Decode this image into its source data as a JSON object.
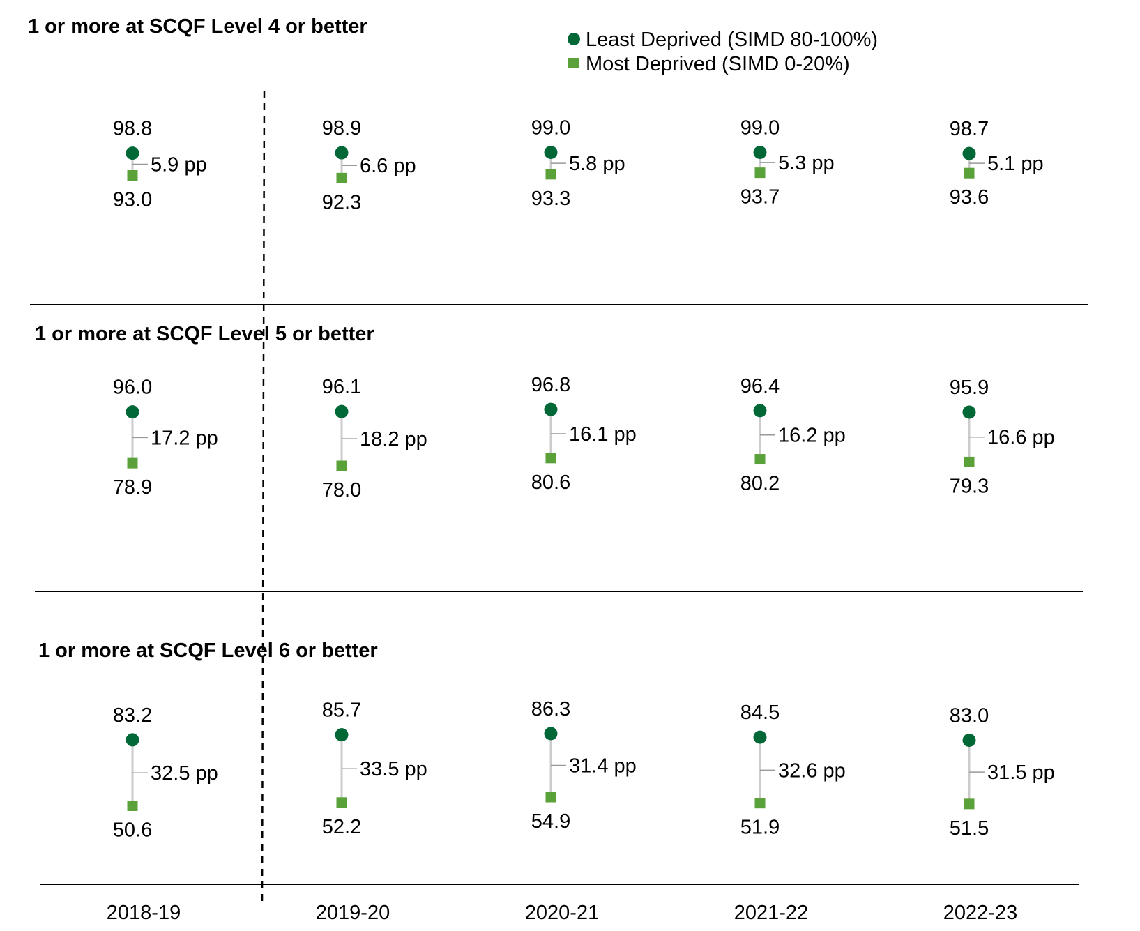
{
  "chart_data": {
    "type": "dumbbell",
    "categories": [
      "2018-19",
      "2019-20",
      "2020-21",
      "2021-22",
      "2022-23"
    ],
    "series_names": [
      "Least Deprived (SIMD 80-100%)",
      "Most Deprived (SIMD 0-20%)"
    ],
    "colors": {
      "least": "#006837",
      "most": "#5aa13a",
      "connector": "#cccccc",
      "gap_tick": "#999999"
    },
    "gap_unit": "pp",
    "panels": [
      {
        "title": "1 or more at SCQF Level 4 or better",
        "least": [
          98.8,
          98.9,
          99.0,
          99.0,
          98.7
        ],
        "most": [
          93.0,
          92.3,
          93.3,
          93.7,
          93.6
        ],
        "gap": [
          5.9,
          6.6,
          5.8,
          5.3,
          5.1
        ],
        "least_labels": [
          "98.8",
          "98.9",
          "99.0",
          "99.0",
          "98.7"
        ],
        "most_labels": [
          "93.0",
          "92.3",
          "93.3",
          "93.7",
          "93.6"
        ],
        "gap_labels": [
          "5.9 pp",
          "6.6 pp",
          "5.8 pp",
          "5.3 pp",
          "5.1 pp"
        ]
      },
      {
        "title": "1 or more at SCQF Level 5 or better",
        "least": [
          96.0,
          96.1,
          96.8,
          96.4,
          95.9
        ],
        "most": [
          78.9,
          78.0,
          80.6,
          80.2,
          79.3
        ],
        "gap": [
          17.2,
          18.2,
          16.1,
          16.2,
          16.6
        ],
        "least_labels": [
          "96.0",
          "96.1",
          "96.8",
          "96.4",
          "95.9"
        ],
        "most_labels": [
          "78.9",
          "78.0",
          "80.6",
          "80.2",
          "79.3"
        ],
        "gap_labels": [
          "17.2 pp",
          "18.2 pp",
          "16.1 pp",
          "16.2 pp",
          "16.6 pp"
        ]
      },
      {
        "title": "1 or more at SCQF Level 6 or better",
        "least": [
          83.2,
          85.7,
          86.3,
          84.5,
          83.0
        ],
        "most": [
          50.6,
          52.2,
          54.9,
          51.9,
          51.5
        ],
        "gap": [
          32.5,
          33.5,
          31.4,
          32.6,
          31.5
        ],
        "least_labels": [
          "83.2",
          "85.7",
          "86.3",
          "84.5",
          "83.0"
        ],
        "most_labels": [
          "50.6",
          "52.2",
          "54.9",
          "51.9",
          "51.5"
        ],
        "gap_labels": [
          "32.5 pp",
          "33.5 pp",
          "31.4 pp",
          "32.6 pp",
          "31.5 pp"
        ]
      }
    ],
    "legend_position": "top-right",
    "grid": false,
    "reference_line_between": [
      "2018-19",
      "2019-20"
    ]
  }
}
